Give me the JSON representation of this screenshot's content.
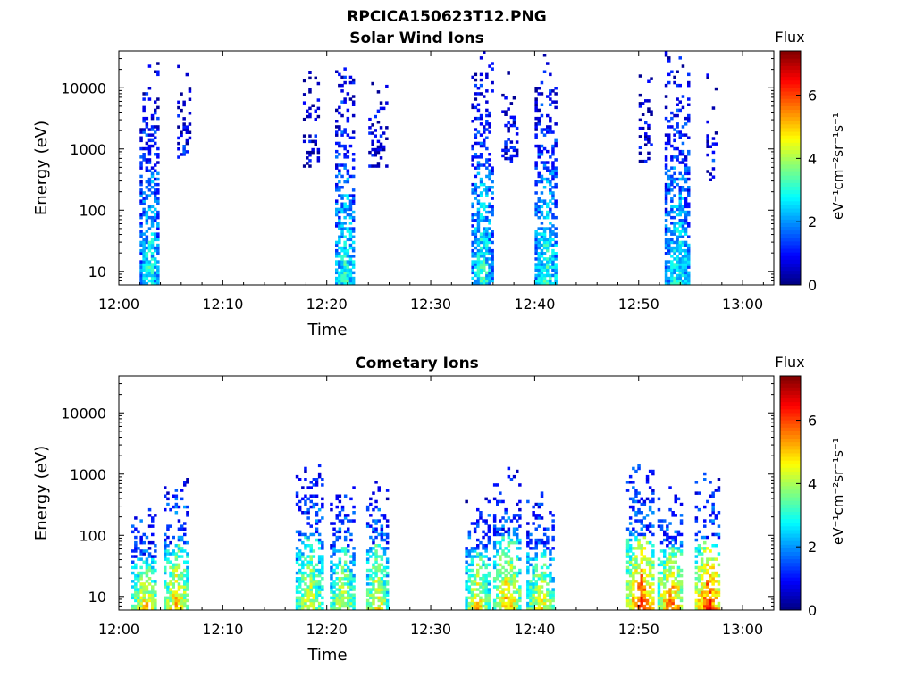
{
  "figure": {
    "title": "RPCICA150623T12.PNG"
  },
  "chart_data": [
    {
      "type": "heatmap",
      "title": "Solar Wind Ions",
      "xlabel": "Time",
      "ylabel": "Energy (eV)",
      "x_ticks": [
        "12:00",
        "12:10",
        "12:20",
        "12:30",
        "12:40",
        "12:50",
        "13:00"
      ],
      "x_range_minutes": [
        0,
        63
      ],
      "y_ticks": [
        "10",
        "100",
        "1000",
        "10000"
      ],
      "y_scale": "log",
      "ylim": [
        6,
        40000
      ],
      "colorbar": {
        "label": "Flux",
        "unit_label": "eV⁻¹cm⁻²sr⁻¹s⁻¹",
        "ticks": [
          "0",
          "2",
          "4",
          "6"
        ],
        "range": [
          0,
          7.4
        ],
        "colormap": "jet"
      },
      "bursts": [
        {
          "t_start": 2.0,
          "t_end": 3.7,
          "e_min": 6,
          "e_max": 28000,
          "intensity": 3.0
        },
        {
          "t_start": 5.6,
          "t_end": 6.9,
          "e_min": 700,
          "e_max": 25000,
          "intensity": 2.0
        },
        {
          "t_start": 17.7,
          "t_end": 19.3,
          "e_min": 500,
          "e_max": 18000,
          "intensity": 1.5
        },
        {
          "t_start": 20.8,
          "t_end": 22.6,
          "e_min": 6,
          "e_max": 28000,
          "intensity": 3.2
        },
        {
          "t_start": 24.0,
          "t_end": 25.8,
          "e_min": 500,
          "e_max": 12000,
          "intensity": 1.8
        },
        {
          "t_start": 33.9,
          "t_end": 35.8,
          "e_min": 6,
          "e_max": 38000,
          "intensity": 3.2
        },
        {
          "t_start": 36.8,
          "t_end": 38.2,
          "e_min": 600,
          "e_max": 20000,
          "intensity": 2.0
        },
        {
          "t_start": 40.0,
          "t_end": 42.0,
          "e_min": 6,
          "e_max": 38000,
          "intensity": 3.2
        },
        {
          "t_start": 50.0,
          "t_end": 51.2,
          "e_min": 600,
          "e_max": 18000,
          "intensity": 1.8
        },
        {
          "t_start": 52.5,
          "t_end": 54.8,
          "e_min": 6,
          "e_max": 38000,
          "intensity": 3.0
        },
        {
          "t_start": 56.5,
          "t_end": 57.5,
          "e_min": 300,
          "e_max": 18000,
          "intensity": 1.8
        }
      ]
    },
    {
      "type": "heatmap",
      "title": "Cometary Ions",
      "xlabel": "Time",
      "ylabel": "Energy (eV)",
      "x_ticks": [
        "12:00",
        "12:10",
        "12:20",
        "12:30",
        "12:40",
        "12:50",
        "13:00"
      ],
      "x_range_minutes": [
        0,
        63
      ],
      "y_ticks": [
        "10",
        "100",
        "1000",
        "10000"
      ],
      "y_scale": "log",
      "ylim": [
        6,
        40000
      ],
      "colorbar": {
        "label": "Flux",
        "unit_label": "eV⁻¹cm⁻²sr⁻¹s⁻¹",
        "ticks": [
          "0",
          "2",
          "4",
          "6"
        ],
        "range": [
          0,
          7.4
        ],
        "colormap": "jet"
      },
      "bursts": [
        {
          "t_start": 1.2,
          "t_end": 3.6,
          "e_min": 6,
          "e_max": 300,
          "intensity": 5.0
        },
        {
          "t_start": 4.3,
          "t_end": 6.6,
          "e_min": 6,
          "e_max": 800,
          "intensity": 5.3
        },
        {
          "t_start": 17.0,
          "t_end": 19.5,
          "e_min": 6,
          "e_max": 1500,
          "intensity": 4.6
        },
        {
          "t_start": 20.3,
          "t_end": 22.6,
          "e_min": 6,
          "e_max": 600,
          "intensity": 4.6
        },
        {
          "t_start": 23.8,
          "t_end": 25.7,
          "e_min": 6,
          "e_max": 800,
          "intensity": 5.0
        },
        {
          "t_start": 33.3,
          "t_end": 35.5,
          "e_min": 6,
          "e_max": 500,
          "intensity": 5.0
        },
        {
          "t_start": 36.0,
          "t_end": 38.5,
          "e_min": 6,
          "e_max": 1400,
          "intensity": 5.4
        },
        {
          "t_start": 39.2,
          "t_end": 41.8,
          "e_min": 6,
          "e_max": 500,
          "intensity": 4.8
        },
        {
          "t_start": 48.8,
          "t_end": 51.5,
          "e_min": 6,
          "e_max": 1500,
          "intensity": 6.4
        },
        {
          "t_start": 51.8,
          "t_end": 54.2,
          "e_min": 6,
          "e_max": 600,
          "intensity": 6.0
        },
        {
          "t_start": 55.4,
          "t_end": 57.8,
          "e_min": 6,
          "e_max": 1000,
          "intensity": 6.5
        }
      ]
    }
  ]
}
